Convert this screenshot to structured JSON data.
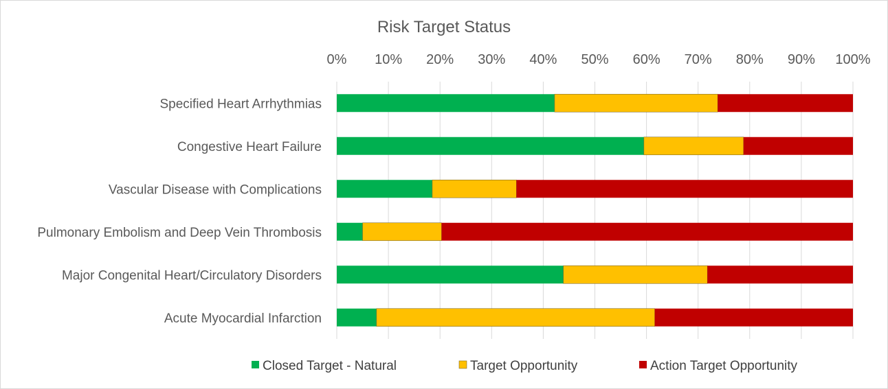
{
  "chart_data": {
    "type": "bar",
    "orientation": "horizontal",
    "stacked": "percent",
    "title": "Risk Target Status",
    "xlabel": "",
    "ylabel": "",
    "xlim": [
      0,
      100
    ],
    "x_axis_position": "top",
    "x_ticks": [
      "0%",
      "10%",
      "20%",
      "30%",
      "40%",
      "50%",
      "60%",
      "70%",
      "80%",
      "90%",
      "100%"
    ],
    "grid": true,
    "legend_position": "bottom",
    "categories": [
      "Specified Heart Arrhythmias",
      "Congestive Heart Failure",
      "Vascular Disease with Complications",
      "Pulmonary Embolism and Deep Vein Thrombosis",
      "Major Congenital Heart/Circulatory Disorders",
      "Acute Myocardial Infarction"
    ],
    "series": [
      {
        "name": "Closed Target - Natural",
        "color": "#00b050",
        "values": [
          42.2,
          59.5,
          18.5,
          5.0,
          43.9,
          7.7
        ]
      },
      {
        "name": "Target Opportunity",
        "color": "#ffc000",
        "values": [
          31.6,
          19.3,
          16.3,
          15.3,
          27.9,
          53.9
        ]
      },
      {
        "name": "Action Target Opportunity",
        "color": "#c00000",
        "values": [
          26.2,
          21.2,
          65.2,
          79.7,
          28.2,
          38.4
        ]
      }
    ]
  }
}
